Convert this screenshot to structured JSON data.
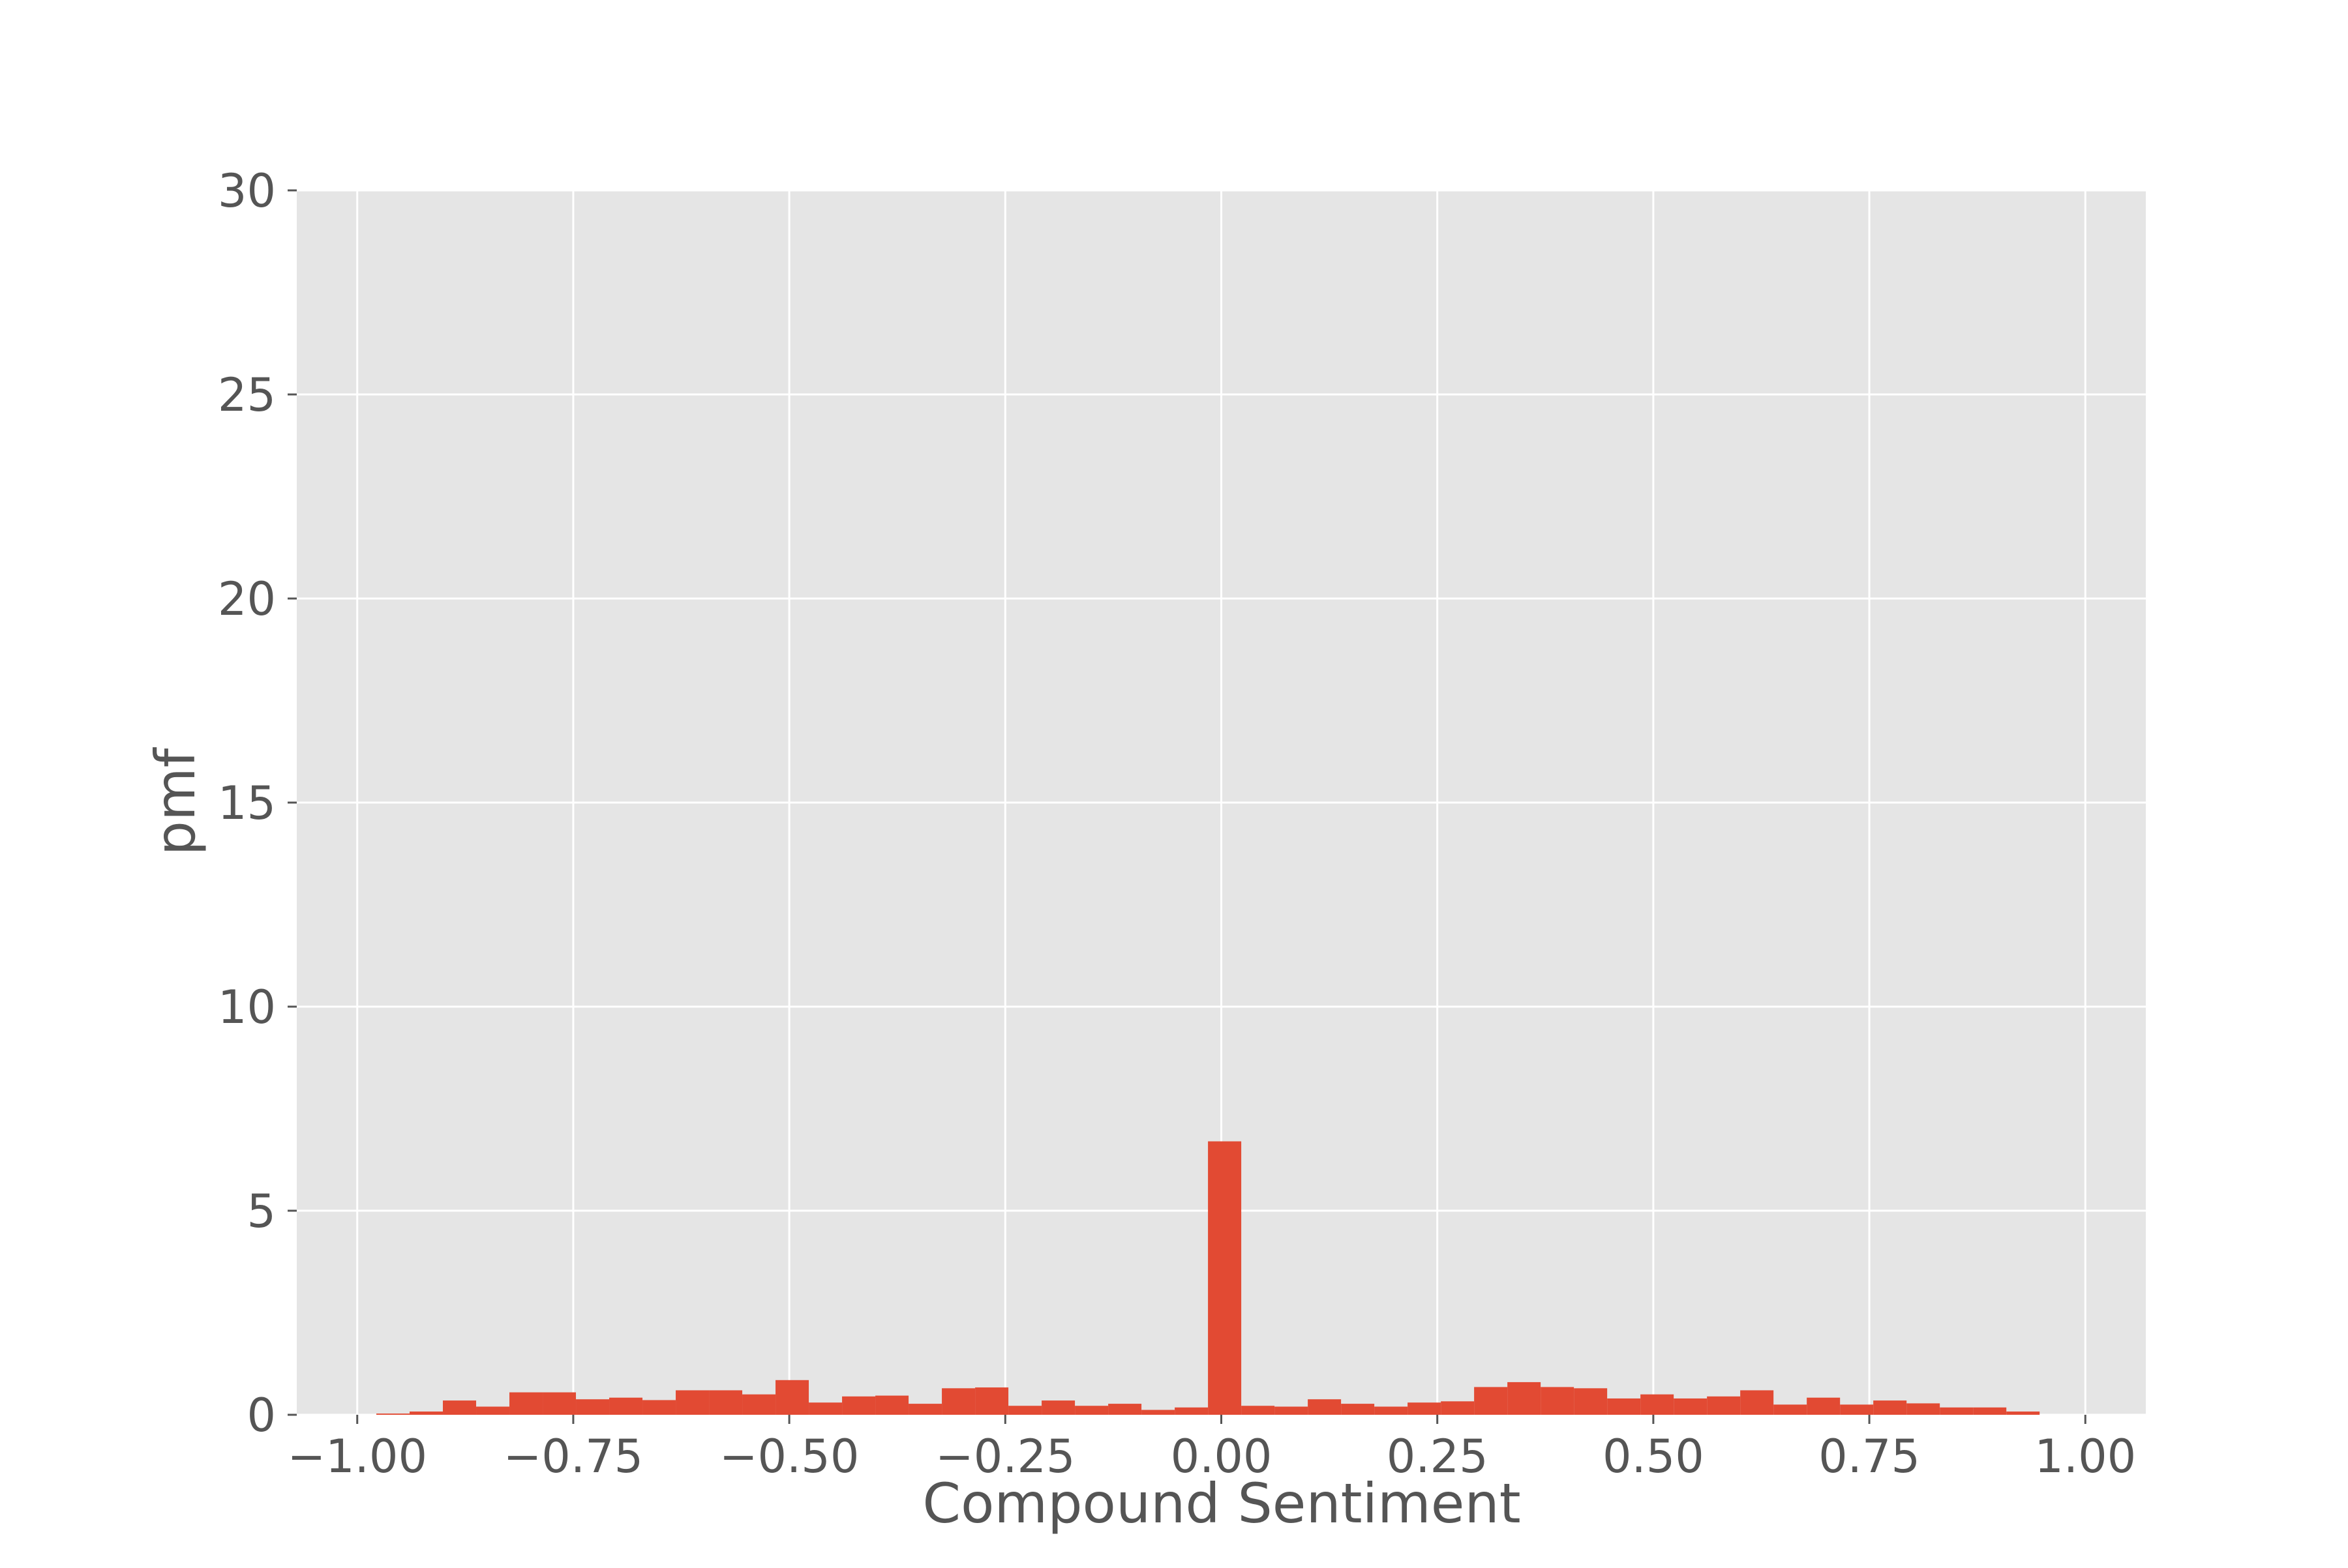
{
  "chart_data": {
    "type": "bar",
    "title": "",
    "xlabel": "Compound Sentiment",
    "ylabel": "pmf",
    "xlim": [
      -1.07,
      1.07
    ],
    "ylim": [
      0,
      30
    ],
    "x_ticks": [
      -1.0,
      -0.75,
      -0.5,
      -0.25,
      0.0,
      0.25,
      0.5,
      0.75,
      1.0
    ],
    "x_tick_labels": [
      "−1.00",
      "−0.75",
      "−0.50",
      "−0.25",
      "0.00",
      "0.25",
      "0.50",
      "0.75",
      "1.00"
    ],
    "y_ticks": [
      0,
      5,
      10,
      15,
      20,
      25,
      30
    ],
    "y_tick_labels": [
      "0",
      "5",
      "10",
      "15",
      "20",
      "25",
      "30"
    ],
    "grid": true,
    "bin_start": -0.9779,
    "bin_width": 0.0385,
    "values": [
      0.03,
      0.08,
      0.35,
      0.2,
      0.55,
      0.55,
      0.38,
      0.42,
      0.36,
      0.6,
      0.6,
      0.5,
      0.85,
      0.3,
      0.45,
      0.47,
      0.27,
      0.65,
      0.67,
      0.22,
      0.35,
      0.22,
      0.27,
      0.12,
      0.18,
      6.7,
      0.22,
      0.2,
      0.38,
      0.27,
      0.2,
      0.3,
      0.33,
      0.68,
      0.8,
      0.68,
      0.65,
      0.4,
      0.5,
      0.4,
      0.45,
      0.6,
      0.25,
      0.42,
      0.25,
      0.35,
      0.28,
      0.18,
      0.18,
      0.08
    ],
    "colors": {
      "bar": "#E24A33",
      "plot_background": "#E5E5E5",
      "grid": "#FFFFFF",
      "text": "#555555"
    }
  }
}
